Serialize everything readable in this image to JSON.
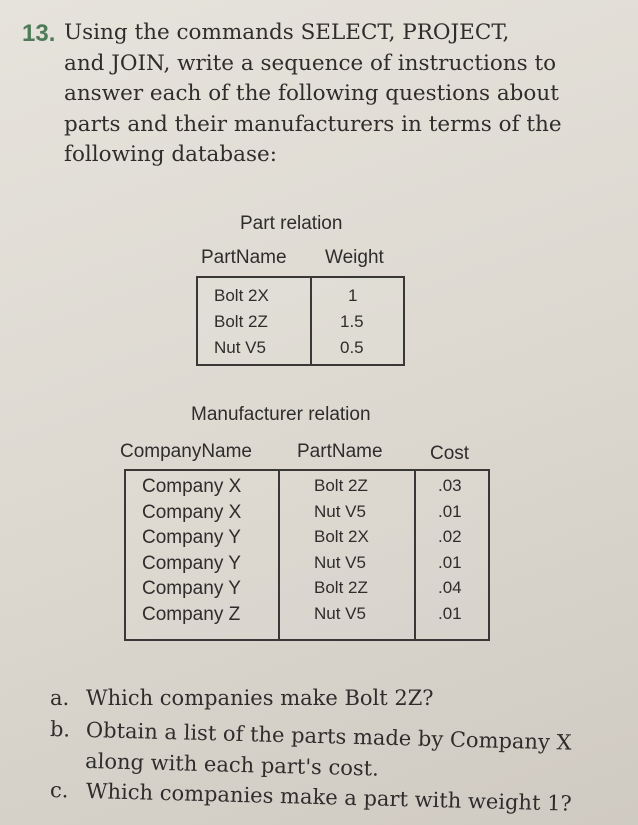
{
  "question": {
    "number": "13.",
    "lines": [
      "Using the commands SELECT, PROJECT,",
      "and JOIN, write a sequence of instructions to",
      "answer each of the following questions about",
      "parts and their manufacturers in terms of the",
      "following database:"
    ]
  },
  "part_relation": {
    "title": "Part relation",
    "headers": [
      "PartName",
      "Weight"
    ],
    "rows": [
      [
        "Bolt 2X",
        "1"
      ],
      [
        "Bolt 2Z",
        "1.5"
      ],
      [
        "Nut V5",
        "0.5"
      ]
    ]
  },
  "manufacturer_relation": {
    "title": "Manufacturer relation",
    "headers": [
      "CompanyName",
      "PartName",
      "Cost"
    ],
    "rows": [
      [
        "Company X",
        "Bolt 2Z",
        ".03"
      ],
      [
        "Company X",
        "Nut V5",
        ".01"
      ],
      [
        "Company Y",
        "Bolt 2X",
        ".02"
      ],
      [
        "Company Y",
        "Nut V5",
        ".01"
      ],
      [
        "Company Y",
        "Bolt 2Z",
        ".04"
      ],
      [
        "Company Z",
        "Nut V5",
        ".01"
      ]
    ]
  },
  "subquestions": [
    {
      "label": "a.",
      "lines": [
        "Which companies make Bolt 2Z?"
      ]
    },
    {
      "label": "b.",
      "lines": [
        "Obtain a list of the parts made by Company X",
        "along with each part's cost."
      ]
    },
    {
      "label": "c.",
      "lines": [
        "Which companies make a part with weight 1?"
      ]
    }
  ]
}
